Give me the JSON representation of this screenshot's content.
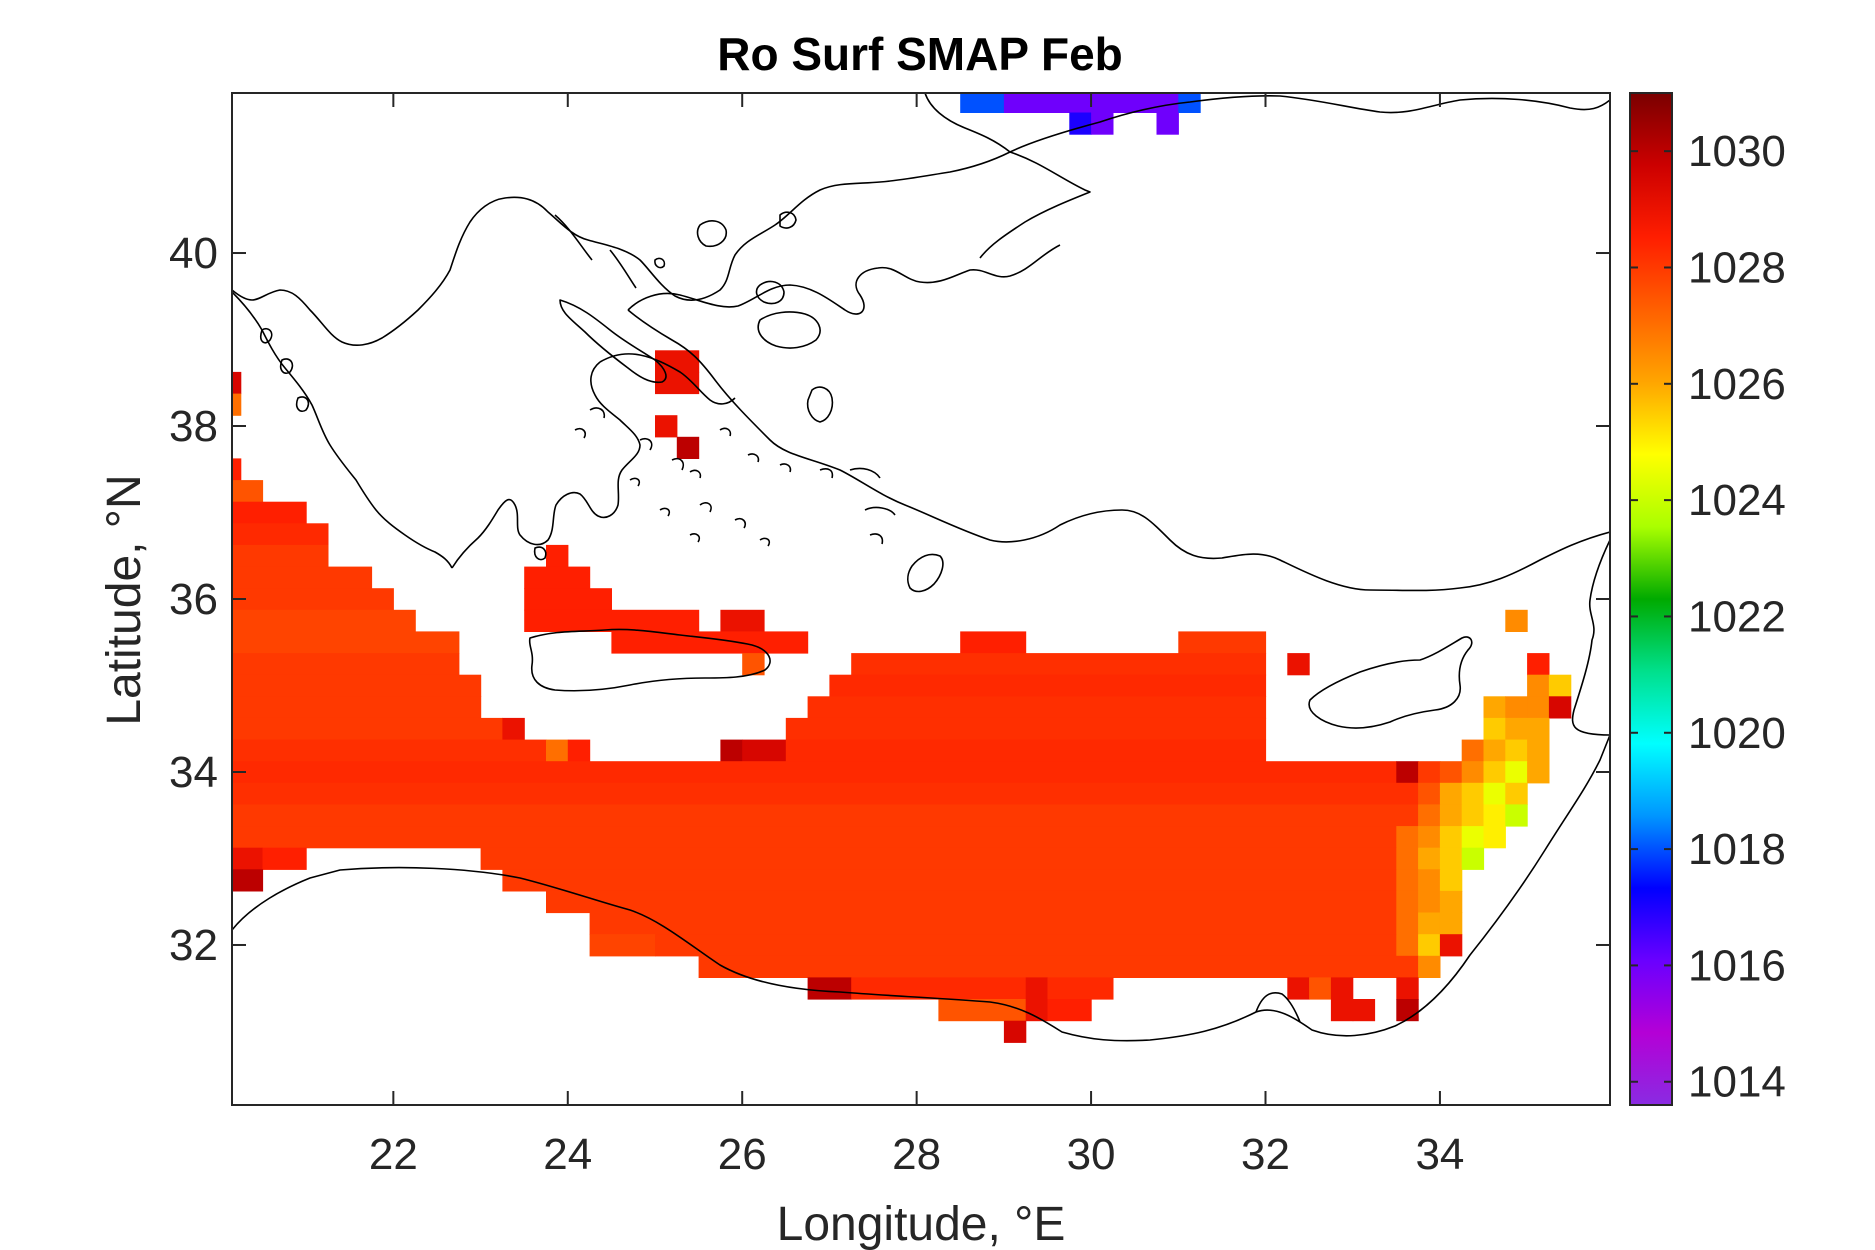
{
  "chart_data": {
    "type": "heatmap",
    "title": "Ro Surf SMAP Feb",
    "xlabel": "Longitude, °E",
    "ylabel": "Latitude, °N",
    "xlim": [
      20.15,
      35.95
    ],
    "ylim": [
      30.15,
      41.85
    ],
    "xticks": [
      22,
      24,
      26,
      28,
      30,
      32,
      34
    ],
    "yticks": [
      32,
      34,
      36,
      38,
      40
    ],
    "colorbar": {
      "range": [
        1013.6,
        1031.0
      ],
      "ticks": [
        1014,
        1016,
        1018,
        1020,
        1022,
        1024,
        1026,
        1028,
        1030
      ],
      "colormap": [
        "#8a2be2",
        "#b400d6",
        "#6a00ff",
        "#0000ff",
        "#0096ff",
        "#00ffff",
        "#00e08c",
        "#00aa00",
        "#aaff00",
        "#ffff00",
        "#ffa500",
        "#ff6000",
        "#ff1e00",
        "#cc0000",
        "#7a0000"
      ]
    },
    "cell_size_deg": 0.25,
    "rows": [
      {
        "lat": 41.75,
        "cells": [
          [
            28.5,
            29.0,
            1018
          ],
          [
            29.0,
            31.0,
            1016
          ],
          [
            31.0,
            31.25,
            1018
          ]
        ]
      },
      {
        "lat": 41.5,
        "cells": [
          [
            29.75,
            30.0,
            1017
          ],
          [
            30.0,
            30.25,
            1016
          ],
          [
            30.75,
            31.0,
            1016
          ]
        ]
      },
      {
        "lat": 38.75,
        "cells": [
          [
            25.0,
            25.5,
            1029
          ]
        ]
      },
      {
        "lat": 38.5,
        "cells": [
          [
            20.15,
            20.25,
            1029.5
          ],
          [
            25.0,
            25.5,
            1029
          ]
        ]
      },
      {
        "lat": 38.25,
        "cells": [
          [
            20.15,
            20.25,
            1027
          ]
        ]
      },
      {
        "lat": 38.0,
        "cells": [
          [
            25.0,
            25.25,
            1029
          ]
        ]
      },
      {
        "lat": 37.75,
        "cells": [
          [
            25.25,
            25.5,
            1030
          ]
        ]
      },
      {
        "lat": 37.5,
        "cells": [
          [
            20.15,
            20.25,
            1028.5
          ]
        ]
      },
      {
        "lat": 37.25,
        "cells": [
          [
            20.15,
            20.5,
            1027.5
          ]
        ]
      },
      {
        "lat": 37.0,
        "cells": [
          [
            20.15,
            21.0,
            1028.5
          ]
        ]
      },
      {
        "lat": 36.75,
        "cells": [
          [
            20.15,
            21.25,
            1028.3
          ]
        ]
      },
      {
        "lat": 36.5,
        "cells": [
          [
            20.15,
            21.25,
            1028
          ],
          [
            23.75,
            24.0,
            1028.5
          ]
        ]
      },
      {
        "lat": 36.25,
        "cells": [
          [
            20.15,
            21.75,
            1028
          ],
          [
            23.5,
            24.25,
            1028.5
          ]
        ]
      },
      {
        "lat": 36.0,
        "cells": [
          [
            20.15,
            22.0,
            1028
          ],
          [
            23.5,
            24.5,
            1028.5
          ]
        ]
      },
      {
        "lat": 35.75,
        "cells": [
          [
            20.15,
            22.25,
            1027.8
          ],
          [
            23.5,
            25.5,
            1028.5
          ],
          [
            25.75,
            26.25,
            1029
          ],
          [
            34.75,
            35.0,
            1026.5
          ]
        ]
      },
      {
        "lat": 35.5,
        "cells": [
          [
            20.15,
            22.75,
            1027.8
          ],
          [
            24.5,
            26.75,
            1028.5
          ],
          [
            28.5,
            29.25,
            1028.5
          ],
          [
            31.0,
            32.0,
            1028
          ]
        ]
      },
      {
        "lat": 35.25,
        "cells": [
          [
            20.15,
            22.75,
            1028
          ],
          [
            26.0,
            26.25,
            1027.5
          ],
          [
            27.25,
            32.0,
            1028.2
          ],
          [
            32.25,
            32.5,
            1029
          ],
          [
            35.0,
            35.25,
            1028.5
          ]
        ]
      },
      {
        "lat": 35.0,
        "cells": [
          [
            20.15,
            23.0,
            1028
          ],
          [
            27.0,
            32.0,
            1028.3
          ],
          [
            35.0,
            35.25,
            1026.5
          ],
          [
            35.25,
            35.5,
            1025.5
          ]
        ]
      },
      {
        "lat": 34.75,
        "cells": [
          [
            20.15,
            23.0,
            1028
          ],
          [
            26.75,
            32.0,
            1028.2
          ],
          [
            34.5,
            34.75,
            1026
          ],
          [
            34.75,
            35.0,
            1026.5
          ],
          [
            35.0,
            35.25,
            1026.5
          ],
          [
            35.25,
            35.5,
            1029.5
          ]
        ]
      },
      {
        "lat": 34.5,
        "cells": [
          [
            20.15,
            23.25,
            1028
          ],
          [
            23.25,
            23.5,
            1029
          ],
          [
            26.5,
            32.0,
            1028.2
          ],
          [
            34.5,
            34.75,
            1025.5
          ],
          [
            34.75,
            35.25,
            1026
          ]
        ]
      },
      {
        "lat": 34.25,
        "cells": [
          [
            20.15,
            23.75,
            1028.2
          ],
          [
            23.75,
            24.0,
            1027
          ],
          [
            24.0,
            24.25,
            1028.5
          ],
          [
            25.75,
            26.0,
            1030
          ],
          [
            26.0,
            26.5,
            1029.5
          ],
          [
            26.5,
            32.0,
            1028.3
          ],
          [
            34.25,
            34.5,
            1027
          ],
          [
            34.5,
            34.75,
            1026
          ],
          [
            34.75,
            35.0,
            1025.5
          ],
          [
            35.0,
            35.25,
            1026
          ]
        ]
      },
      {
        "lat": 34.0,
        "cells": [
          [
            20.15,
            33.5,
            1028.3
          ],
          [
            33.5,
            33.75,
            1030
          ],
          [
            33.75,
            34.0,
            1028
          ],
          [
            34.0,
            34.25,
            1027.5
          ],
          [
            34.25,
            34.5,
            1026.5
          ],
          [
            34.5,
            34.75,
            1025.5
          ],
          [
            34.75,
            35.0,
            1024.5
          ],
          [
            35.0,
            35.25,
            1026
          ]
        ]
      },
      {
        "lat": 33.75,
        "cells": [
          [
            20.15,
            33.75,
            1028.2
          ],
          [
            33.75,
            34.0,
            1027.5
          ],
          [
            34.0,
            34.25,
            1026
          ],
          [
            34.25,
            34.5,
            1025.5
          ],
          [
            34.5,
            34.75,
            1024.5
          ],
          [
            34.75,
            35.0,
            1025.5
          ]
        ]
      },
      {
        "lat": 33.5,
        "cells": [
          [
            20.15,
            33.75,
            1028
          ],
          [
            33.75,
            34.0,
            1027
          ],
          [
            34.0,
            34.25,
            1026
          ],
          [
            34.25,
            34.5,
            1025.5
          ],
          [
            34.5,
            34.75,
            1025
          ],
          [
            34.75,
            35.0,
            1024
          ]
        ]
      },
      {
        "lat": 33.25,
        "cells": [
          [
            20.15,
            33.5,
            1028
          ],
          [
            33.5,
            33.75,
            1027
          ],
          [
            33.75,
            34.0,
            1026.5
          ],
          [
            34.0,
            34.25,
            1025.5
          ],
          [
            34.25,
            34.5,
            1024.5
          ],
          [
            34.5,
            34.75,
            1025
          ]
        ]
      },
      {
        "lat": 33.0,
        "cells": [
          [
            20.15,
            20.5,
            1029
          ],
          [
            20.5,
            21.0,
            1028.5
          ],
          [
            23.0,
            33.5,
            1028
          ],
          [
            33.5,
            33.75,
            1027
          ],
          [
            33.75,
            34.0,
            1026
          ],
          [
            34.0,
            34.25,
            1025.5
          ],
          [
            34.25,
            34.5,
            1024
          ]
        ]
      },
      {
        "lat": 32.75,
        "cells": [
          [
            20.15,
            20.5,
            1030
          ],
          [
            23.25,
            33.5,
            1028
          ],
          [
            33.5,
            33.75,
            1027
          ],
          [
            33.75,
            34.0,
            1026.5
          ],
          [
            34.0,
            34.25,
            1025.5
          ]
        ]
      },
      {
        "lat": 32.5,
        "cells": [
          [
            23.75,
            33.5,
            1028
          ],
          [
            33.5,
            33.75,
            1027
          ],
          [
            33.75,
            34.0,
            1026.5
          ],
          [
            34.0,
            34.25,
            1026
          ]
        ]
      },
      {
        "lat": 32.25,
        "cells": [
          [
            24.25,
            33.5,
            1028
          ],
          [
            33.5,
            33.75,
            1027
          ],
          [
            33.75,
            34.0,
            1026
          ],
          [
            34.0,
            34.25,
            1026
          ]
        ]
      },
      {
        "lat": 32.0,
        "cells": [
          [
            24.25,
            25.0,
            1027.8
          ],
          [
            25.0,
            33.5,
            1028
          ],
          [
            33.5,
            33.75,
            1027
          ],
          [
            33.75,
            34.0,
            1025.5
          ],
          [
            34.0,
            34.25,
            1029
          ]
        ]
      },
      {
        "lat": 31.75,
        "cells": [
          [
            25.5,
            33.75,
            1028
          ],
          [
            33.75,
            34.0,
            1026.5
          ]
        ]
      },
      {
        "lat": 31.5,
        "cells": [
          [
            26.75,
            27.25,
            1030
          ],
          [
            27.25,
            29.25,
            1028.3
          ],
          [
            29.25,
            29.5,
            1029
          ],
          [
            29.5,
            30.25,
            1028.3
          ],
          [
            32.25,
            32.5,
            1029
          ],
          [
            32.5,
            32.75,
            1027.5
          ],
          [
            32.75,
            33.0,
            1029
          ],
          [
            33.5,
            33.75,
            1029
          ]
        ]
      },
      {
        "lat": 31.25,
        "cells": [
          [
            28.25,
            29.25,
            1027.5
          ],
          [
            29.25,
            29.5,
            1029
          ],
          [
            29.5,
            30.0,
            1028.5
          ],
          [
            32.75,
            33.0,
            1029
          ],
          [
            33.0,
            33.25,
            1029
          ],
          [
            33.5,
            33.75,
            1030
          ]
        ]
      },
      {
        "lat": 31.0,
        "cells": [
          [
            29.0,
            29.25,
            1029.5
          ]
        ]
      }
    ]
  }
}
